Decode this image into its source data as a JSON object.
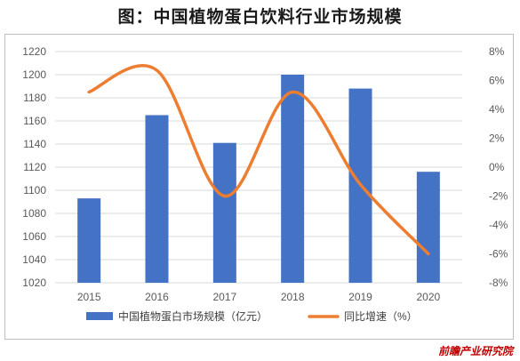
{
  "title": "图：中国植物蛋白饮料行业市场规模",
  "source": "前瞻产业研究院",
  "chart_data": {
    "type": "bar",
    "categories": [
      "2015",
      "2016",
      "2017",
      "2018",
      "2019",
      "2020"
    ],
    "series": [
      {
        "name": "中国植物蛋白市场规模（亿元）",
        "type": "bar",
        "axis": "left",
        "color": "#4472c4",
        "values": [
          1093,
          1165,
          1141,
          1200,
          1188,
          1116
        ]
      },
      {
        "name": "同比增速（%）",
        "type": "line",
        "axis": "right",
        "smooth": true,
        "color": "#ed7d31",
        "values": [
          5.2,
          6.7,
          -2.0,
          5.2,
          -1.2,
          -6.0
        ]
      }
    ],
    "y_left": {
      "min": 1020,
      "max": 1220,
      "step": 20,
      "ticks": [
        "1020",
        "1040",
        "1060",
        "1080",
        "1100",
        "1120",
        "1140",
        "1160",
        "1180",
        "1200",
        "1220"
      ]
    },
    "y_right": {
      "min": -8,
      "max": 8,
      "step": 2,
      "ticks": [
        "-8%",
        "-6%",
        "-4%",
        "-2%",
        "0%",
        "2%",
        "4%",
        "6%",
        "8%"
      ]
    },
    "grid": "horizontal",
    "legend": "bottom"
  }
}
